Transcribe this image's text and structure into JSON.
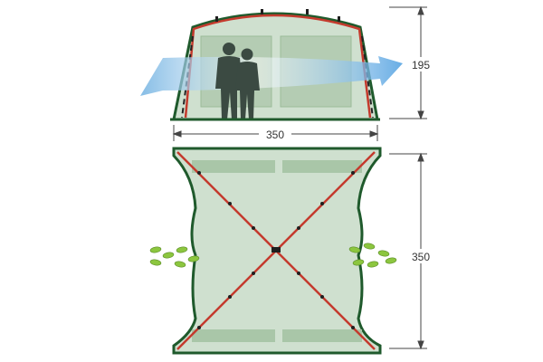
{
  "diagram": {
    "front_height_label": "195",
    "front_width_label": "350",
    "plan_depth_label": "350"
  },
  "colors": {
    "frame_green": "#1f5a2c",
    "pole_red": "#c43a2d",
    "mesh_fill": "#cfe0cf",
    "panel_fill": "#a9c6a8",
    "airflow_blue": "#6aaee0",
    "footprint_green": "#8cc63f",
    "people_silhouette": "#3b4a42"
  },
  "icons": {
    "people": "people-silhouette-icon",
    "airflow": "airflow-arrow-icon",
    "footprints": "footprints-icon"
  }
}
